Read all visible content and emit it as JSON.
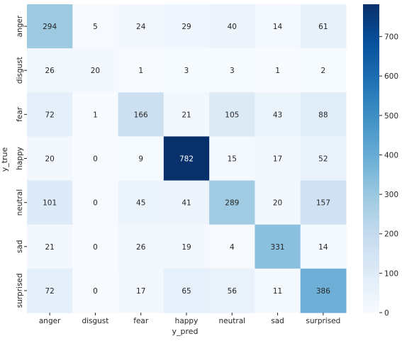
{
  "chart_data": {
    "type": "heatmap",
    "title": "",
    "xlabel": "y_pred",
    "ylabel": "y_true",
    "x_categories": [
      "anger",
      "disgust",
      "fear",
      "happy",
      "neutral",
      "sad",
      "surprised"
    ],
    "y_categories": [
      "anger",
      "disgust",
      "fear",
      "happy",
      "neutral",
      "sad",
      "surprised"
    ],
    "values": [
      [
        294,
        5,
        24,
        29,
        40,
        14,
        61
      ],
      [
        26,
        20,
        1,
        3,
        3,
        1,
        2
      ],
      [
        72,
        1,
        166,
        21,
        105,
        43,
        88
      ],
      [
        20,
        0,
        9,
        782,
        15,
        17,
        52
      ],
      [
        101,
        0,
        45,
        41,
        289,
        20,
        157
      ],
      [
        21,
        0,
        26,
        19,
        4,
        331,
        14
      ],
      [
        72,
        0,
        17,
        65,
        56,
        11,
        386
      ]
    ],
    "colormap": "Blues",
    "colorbar": {
      "vmin": 0,
      "vmax": 782,
      "ticks": [
        0,
        100,
        200,
        300,
        400,
        500,
        600,
        700
      ],
      "tick_labels": [
        "0",
        "100",
        "200",
        "300",
        "400",
        "500",
        "600",
        "700"
      ]
    },
    "annotations": true,
    "colors": {
      "text_dark": "#262626",
      "text_light": "#ffffff"
    }
  }
}
